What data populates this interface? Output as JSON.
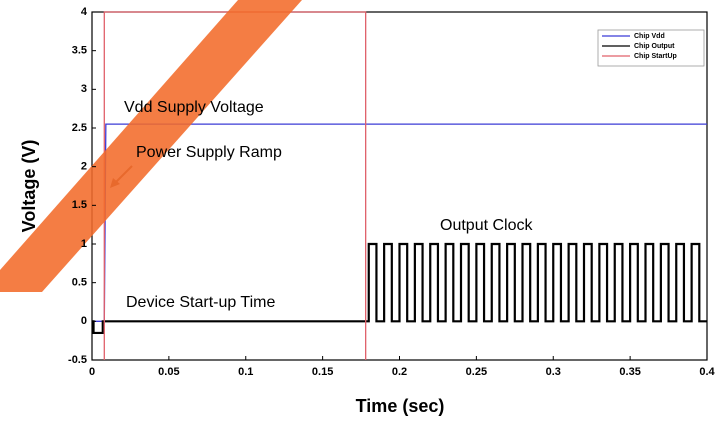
{
  "chart_data": {
    "type": "line",
    "x_label": "Time (sec)",
    "y_label": "Voltage (V)",
    "xlim": [
      0,
      0.4
    ],
    "xticks": [
      0,
      0.05,
      0.1,
      0.15,
      0.2,
      0.25,
      0.3,
      0.35,
      0.4
    ],
    "ylim": [
      -0.5,
      4
    ],
    "yticks": [
      -0.5,
      0,
      0.5,
      1,
      1.5,
      2,
      2.5,
      3,
      3.5,
      4
    ],
    "legend": "upper right",
    "annotations": [
      "Vdd Supply Voltage",
      "Power Supply Ramp",
      "Output Clock",
      "Device Start-up Time"
    ],
    "series": [
      {
        "name": "Chip Vdd",
        "color": "#3b3bd6",
        "x": [
          0,
          0.008,
          0.009,
          0.4
        ],
        "values": [
          0,
          0,
          2.55,
          2.55
        ]
      },
      {
        "name": "Chip Output",
        "color": "#000000",
        "x": [
          0,
          0.001,
          0.001,
          0.007,
          0.007,
          0.18,
          0.18,
          0.185,
          0.185,
          0.19,
          0.19,
          0.195,
          0.195,
          0.2,
          0.2,
          0.205,
          0.205,
          0.21,
          0.21,
          0.215,
          0.215,
          0.22,
          0.22,
          0.225,
          0.225,
          0.23,
          0.23,
          0.235,
          0.235,
          0.24,
          0.24,
          0.245,
          0.245,
          0.25,
          0.25,
          0.255,
          0.255,
          0.26,
          0.26,
          0.265,
          0.265,
          0.27,
          0.27,
          0.275,
          0.275,
          0.28,
          0.28,
          0.285,
          0.285,
          0.29,
          0.29,
          0.295,
          0.295,
          0.3,
          0.3,
          0.305,
          0.305,
          0.31,
          0.31,
          0.315,
          0.315,
          0.32,
          0.32,
          0.325,
          0.325,
          0.33,
          0.33,
          0.335,
          0.335,
          0.34,
          0.34,
          0.345,
          0.345,
          0.35,
          0.35,
          0.355,
          0.355,
          0.36,
          0.36,
          0.365,
          0.365,
          0.37,
          0.37,
          0.375,
          0.375,
          0.38,
          0.38,
          0.385,
          0.385,
          0.39,
          0.39,
          0.395,
          0.395,
          0.4
        ],
        "values": [
          0,
          0,
          -0.15,
          -0.15,
          0,
          0,
          1,
          1,
          0,
          0,
          1,
          1,
          0,
          0,
          1,
          1,
          0,
          0,
          1,
          1,
          0,
          0,
          1,
          1,
          0,
          0,
          1,
          1,
          0,
          0,
          1,
          1,
          0,
          0,
          1,
          1,
          0,
          0,
          1,
          1,
          0,
          0,
          1,
          1,
          0,
          0,
          1,
          1,
          0,
          0,
          1,
          1,
          0,
          0,
          1,
          1,
          0,
          0,
          1,
          1,
          0,
          0,
          1,
          1,
          0,
          0,
          1,
          1,
          0,
          0,
          1,
          1,
          0,
          0,
          1,
          1,
          0,
          0,
          1,
          1,
          0,
          0,
          1,
          1,
          0,
          0,
          1,
          1,
          0,
          0,
          1,
          1,
          0,
          0
        ]
      },
      {
        "name": "Chip StartUp",
        "color": "#e0606a",
        "x": [
          0.008,
          0.008,
          0.178,
          0.178
        ],
        "values": [
          -0.5,
          4,
          4,
          -0.5
        ]
      }
    ]
  }
}
